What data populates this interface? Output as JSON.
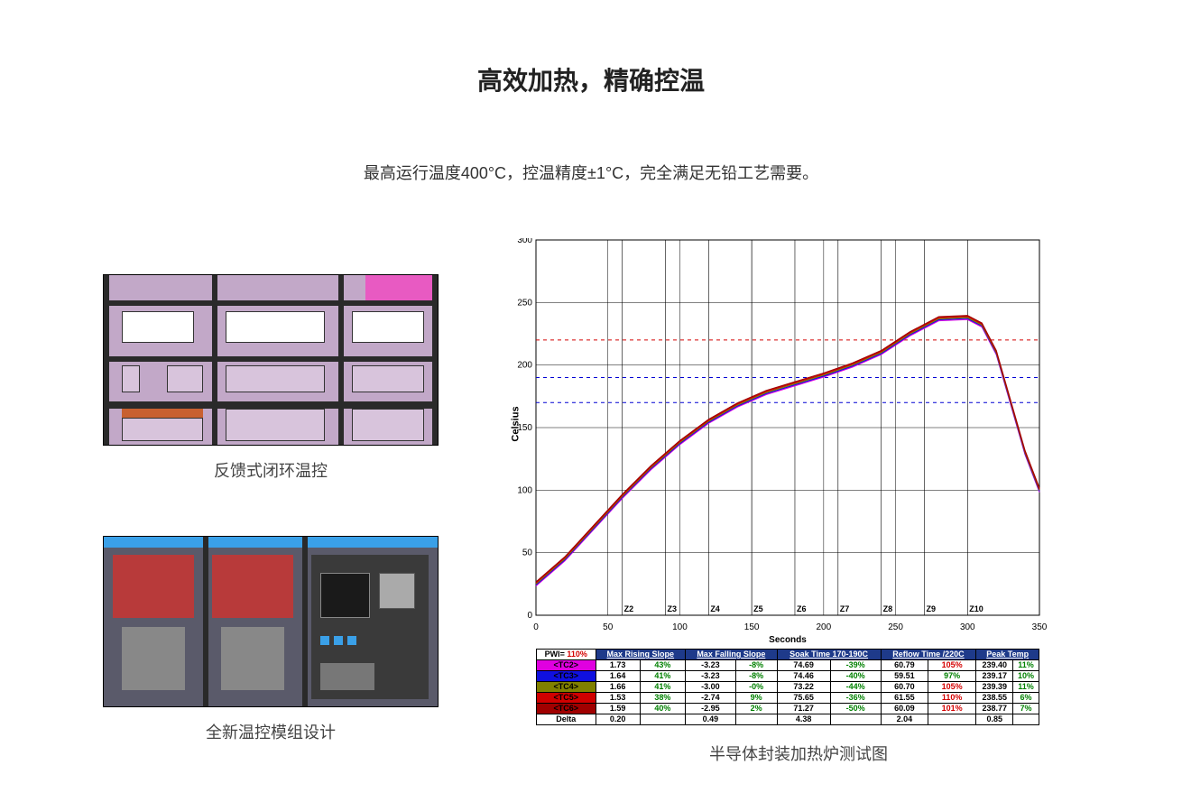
{
  "title": "高效加热，精确控温",
  "subtitle": "最高运行温度400°C，控温精度±1°C，完全满足无铅工艺需要。",
  "left_images": [
    {
      "caption": "反馈式闭环温控"
    },
    {
      "caption": "全新温控模组设计"
    }
  ],
  "chart": {
    "caption": "半导体封装加热炉测试图",
    "y_axis_label": "Celsius",
    "x_axis_label": "Seconds",
    "ylim": [
      0,
      300
    ],
    "ytick_step": 50,
    "xlim": [
      0,
      350
    ],
    "xtick_step": 50,
    "zones": [
      "Z2",
      "Z3",
      "Z4",
      "Z5",
      "Z6",
      "Z7",
      "Z8",
      "Z9",
      "Z10"
    ],
    "zone_x": [
      60,
      90,
      120,
      150,
      180,
      210,
      240,
      270,
      300
    ],
    "ref_lines": [
      {
        "y": 220,
        "color": "#d40000",
        "dash": "4,4"
      },
      {
        "y": 190,
        "color": "#0000d4",
        "dash": "4,4"
      },
      {
        "y": 170,
        "color": "#0000d4",
        "dash": "4,4"
      }
    ],
    "grid_color": "#000000",
    "background_color": "#ffffff",
    "axis_fontsize": 10,
    "series_colors": [
      "#e000e0",
      "#1010e0",
      "#808000",
      "#d00000",
      "#a00000"
    ],
    "curve_points": [
      [
        0,
        25
      ],
      [
        20,
        45
      ],
      [
        40,
        70
      ],
      [
        60,
        95
      ],
      [
        80,
        118
      ],
      [
        100,
        138
      ],
      [
        120,
        155
      ],
      [
        140,
        168
      ],
      [
        160,
        178
      ],
      [
        180,
        185
      ],
      [
        200,
        192
      ],
      [
        220,
        200
      ],
      [
        240,
        210
      ],
      [
        260,
        225
      ],
      [
        280,
        237
      ],
      [
        300,
        238
      ],
      [
        310,
        232
      ],
      [
        320,
        210
      ],
      [
        330,
        170
      ],
      [
        340,
        130
      ],
      [
        350,
        100
      ]
    ]
  },
  "table": {
    "pwi_label": "PWI=",
    "pwi_value": "110%",
    "pwi_value_color": "#d40000",
    "headers": [
      "Max Rising Slope",
      "Max Falling Slope",
      "Soak Time 170-190C",
      "Reflow Time /220C",
      "Peak Temp"
    ],
    "rows": [
      {
        "tc": "<TC2>",
        "tc_bg": "#e000e0",
        "vals": [
          "1.73",
          "43%",
          "-3.23",
          "-8%",
          "74.69",
          "-39%",
          "60.79",
          "105%",
          "239.40",
          "11%"
        ],
        "colors": [
          "#000",
          "#008000",
          "#000",
          "#008000",
          "#000",
          "#008000",
          "#000",
          "#d40000",
          "#000",
          "#008000"
        ]
      },
      {
        "tc": "<TC3>",
        "tc_bg": "#1010e0",
        "vals": [
          "1.64",
          "41%",
          "-3.23",
          "-8%",
          "74.46",
          "-40%",
          "59.51",
          "97%",
          "239.17",
          "10%"
        ],
        "colors": [
          "#000",
          "#008000",
          "#000",
          "#008000",
          "#000",
          "#008000",
          "#000",
          "#008000",
          "#000",
          "#008000"
        ]
      },
      {
        "tc": "<TC4>",
        "tc_bg": "#808000",
        "vals": [
          "1.66",
          "41%",
          "-3.00",
          "-0%",
          "73.22",
          "-44%",
          "60.70",
          "105%",
          "239.39",
          "11%"
        ],
        "colors": [
          "#000",
          "#008000",
          "#000",
          "#008000",
          "#000",
          "#008000",
          "#000",
          "#d40000",
          "#000",
          "#008000"
        ]
      },
      {
        "tc": "<TC5>",
        "tc_bg": "#d00000",
        "vals": [
          "1.53",
          "38%",
          "-2.74",
          "9%",
          "75.65",
          "-36%",
          "61.55",
          "110%",
          "238.55",
          "6%"
        ],
        "colors": [
          "#000",
          "#008000",
          "#000",
          "#008000",
          "#000",
          "#008000",
          "#000",
          "#d40000",
          "#000",
          "#008000"
        ]
      },
      {
        "tc": "<TC6>",
        "tc_bg": "#a00000",
        "vals": [
          "1.59",
          "40%",
          "-2.95",
          "2%",
          "71.27",
          "-50%",
          "60.09",
          "101%",
          "238.77",
          "7%"
        ],
        "colors": [
          "#000",
          "#008000",
          "#000",
          "#008000",
          "#000",
          "#008000",
          "#000",
          "#d40000",
          "#000",
          "#008000"
        ]
      }
    ],
    "delta": {
      "label": "Delta",
      "vals": [
        "0.20",
        "",
        "0.49",
        "",
        "4.38",
        "",
        "2.04",
        "",
        "0.85",
        ""
      ]
    }
  }
}
